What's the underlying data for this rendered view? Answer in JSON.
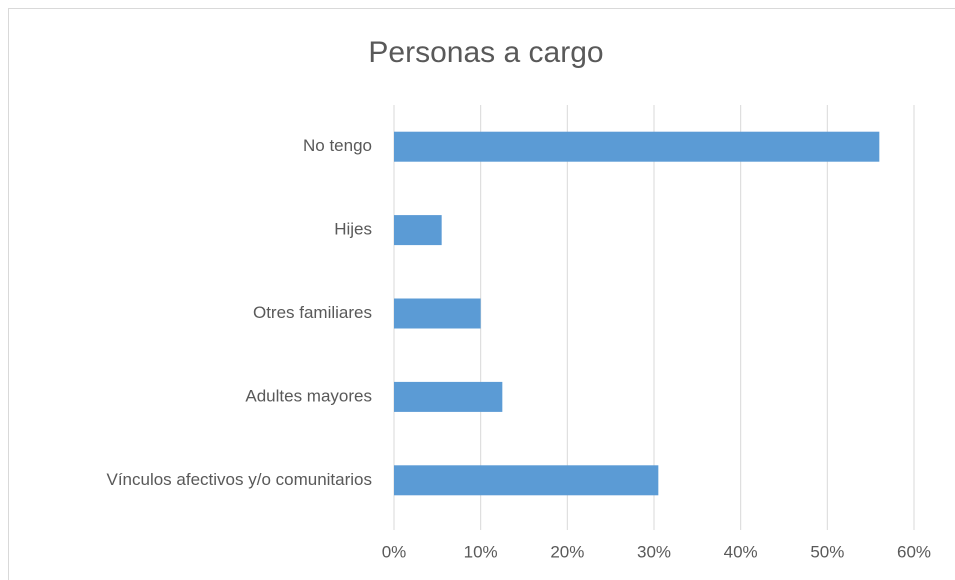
{
  "chart_data": {
    "type": "bar",
    "orientation": "horizontal",
    "title": "Personas a cargo",
    "categories": [
      "No tengo",
      "Hijes",
      "Otres familiares",
      "Adultes mayores",
      "Vínculos afectivos y/o comunitarios"
    ],
    "values": [
      56,
      5.5,
      10,
      12.5,
      30.5
    ],
    "color": "#5b9bd5",
    "xlim": [
      0,
      60
    ],
    "xticks": [
      {
        "value": 0,
        "label": "0%"
      },
      {
        "value": 10,
        "label": "10%"
      },
      {
        "value": 20,
        "label": "20%"
      },
      {
        "value": 30,
        "label": "30%"
      },
      {
        "value": 40,
        "label": "40%"
      },
      {
        "value": 50,
        "label": "50%"
      },
      {
        "value": 60,
        "label": "60%"
      }
    ],
    "grid": true
  }
}
